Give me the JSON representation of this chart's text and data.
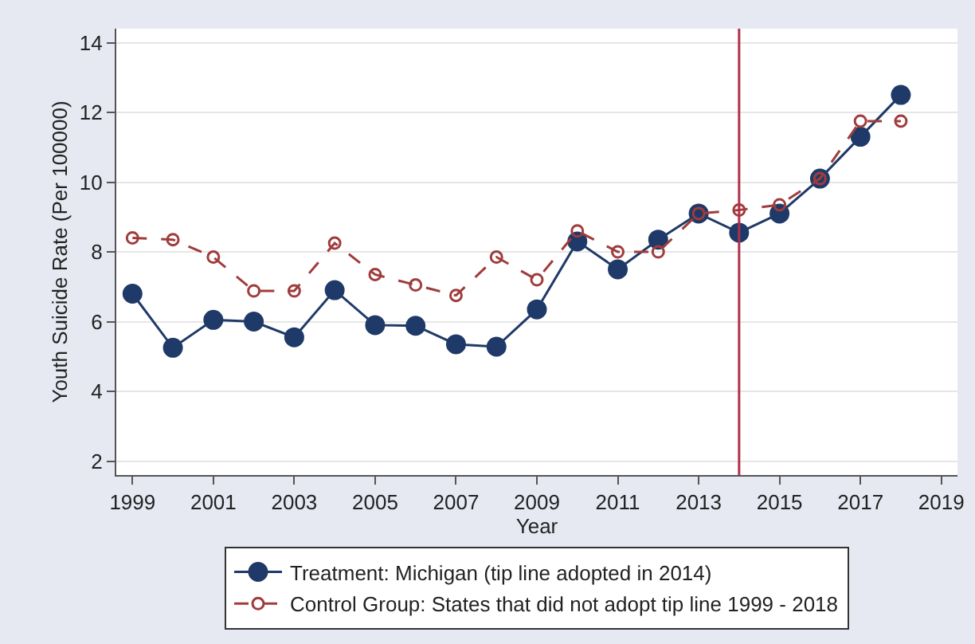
{
  "chart_data": {
    "type": "line",
    "xlabel": "Year",
    "ylabel": "Youth Suicide Rate (Per 100000)",
    "x": [
      1999,
      2000,
      2001,
      2002,
      2003,
      2004,
      2005,
      2006,
      2007,
      2008,
      2009,
      2010,
      2011,
      2012,
      2013,
      2014,
      2015,
      2016,
      2017,
      2018
    ],
    "series": [
      {
        "name": "Treatment: Michigan (tip line adopted in 2014)",
        "color": "#1f3a68",
        "line_style": "solid",
        "values": [
          6.8,
          5.25,
          6.05,
          6.0,
          5.55,
          6.9,
          5.9,
          5.88,
          5.35,
          5.28,
          6.35,
          8.3,
          7.5,
          8.35,
          9.1,
          8.55,
          9.1,
          10.1,
          11.3,
          12.5
        ]
      },
      {
        "name": "Control Group: States that did not adopt tip line 1999 - 2018",
        "color": "#a03c3c",
        "line_style": "dashed",
        "values": [
          8.4,
          8.35,
          7.85,
          6.88,
          6.88,
          8.25,
          7.35,
          7.05,
          6.75,
          7.85,
          7.2,
          8.6,
          8.0,
          8.0,
          9.1,
          9.2,
          9.35,
          10.1,
          11.75,
          11.75
        ]
      }
    ],
    "xlim": [
      1998.6,
      2019.4
    ],
    "ylim": [
      1.6,
      14.4
    ],
    "xticks": [
      1999,
      2001,
      2003,
      2005,
      2007,
      2009,
      2011,
      2013,
      2015,
      2017,
      2019
    ],
    "yticks": [
      2,
      4,
      6,
      8,
      10,
      12,
      14
    ],
    "ref_lines": [
      {
        "axis": "x",
        "value": 2014,
        "color": "#b0304a",
        "line_style": "solid"
      }
    ],
    "grid": "y",
    "legend": "bottom",
    "marker": "circle"
  }
}
